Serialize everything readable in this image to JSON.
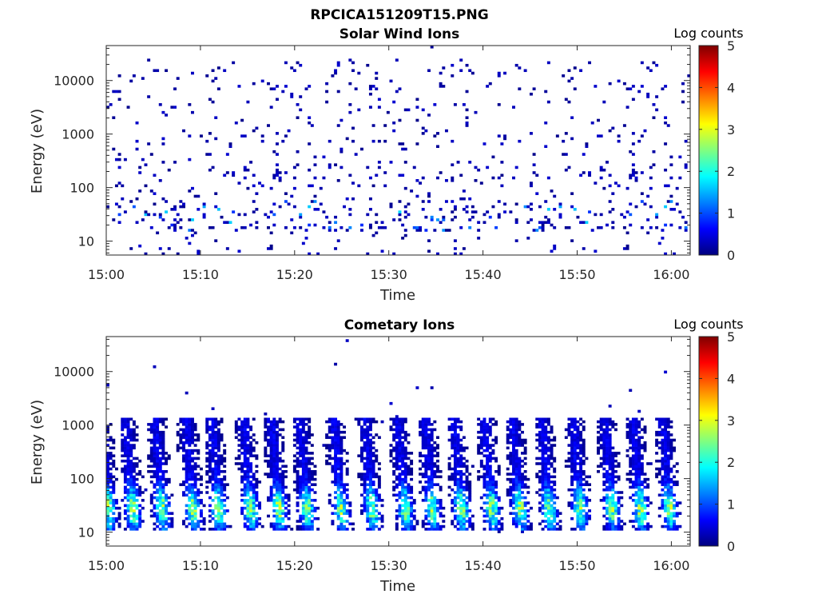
{
  "figure_title": "RPCICA151209T15.PNG",
  "chart_data": [
    {
      "type": "heatmap",
      "title": "Solar Wind Ions",
      "xlabel": "Time",
      "ylabel": "Energy (eV)",
      "x_ticks": [
        "15:00",
        "15:10",
        "15:20",
        "15:30",
        "15:40",
        "15:50",
        "16:00"
      ],
      "x_range_minutes": [
        0,
        62
      ],
      "y_ticks": [
        "10",
        "100",
        "1000",
        "10000"
      ],
      "y_scale": "log",
      "y_range": [
        5.5,
        45000
      ],
      "colorbar": {
        "label": "Log counts",
        "ticks": [
          "0",
          "1",
          "2",
          "3",
          "4",
          "5"
        ],
        "range": [
          0,
          5
        ],
        "colormap": "jet"
      },
      "description_of_data": "sparse scatter of low counts (mostly 0-1.5 log counts) across all energies, denser below 100 eV",
      "cell_counts": {
        "time_bins": 200,
        "energy_bins": 80
      }
    },
    {
      "type": "heatmap",
      "title": "Cometary Ions",
      "xlabel": "Time",
      "ylabel": "Energy (eV)",
      "x_ticks": [
        "15:00",
        "15:10",
        "15:20",
        "15:30",
        "15:40",
        "15:50",
        "16:00"
      ],
      "x_range_minutes": [
        0,
        62
      ],
      "y_ticks": [
        "10",
        "100",
        "1000",
        "10000"
      ],
      "y_scale": "log",
      "y_range": [
        5.5,
        45000
      ],
      "colorbar": {
        "label": "Log counts",
        "ticks": [
          "0",
          "1",
          "2",
          "3",
          "4",
          "5"
        ],
        "range": [
          0,
          5
        ],
        "colormap": "jet"
      },
      "burst_minutes": [
        0.2,
        2.8,
        5.9,
        9.2,
        11.9,
        15.3,
        18.3,
        21.3,
        24.9,
        28.2,
        31.7,
        34.6,
        37.7,
        40.9,
        43.9,
        47.0,
        50.3,
        53.7,
        56.7,
        59.8
      ],
      "burst_peak_log_counts": 2.5,
      "burst_energy_range": [
        15,
        900
      ]
    }
  ]
}
